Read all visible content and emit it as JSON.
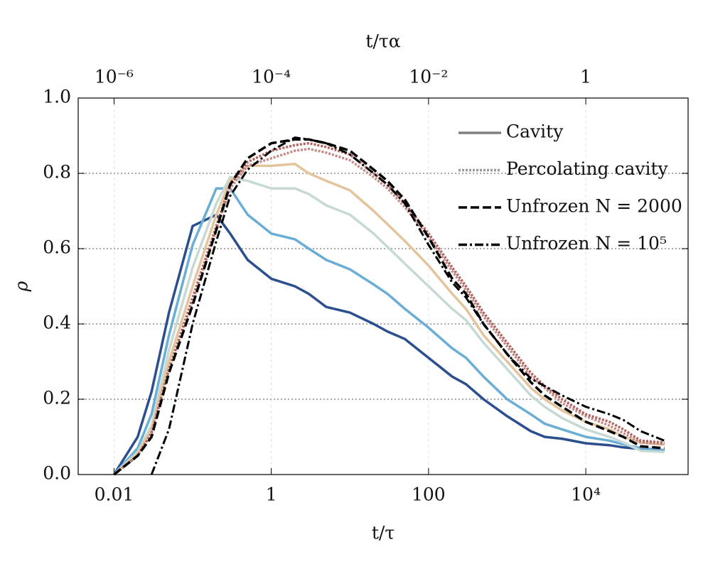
{
  "chart_data": {
    "type": "line",
    "xlabel": "t/τ",
    "x2label": "t/τα",
    "ylabel": "ρ",
    "xscale": "log",
    "xlim": [
      0.0035,
      200000
    ],
    "xticks": [
      0.01,
      1,
      100,
      {
        "value": 10000,
        "label": "10⁴"
      }
    ],
    "x2lim": [
      3.5e-07,
      20
    ],
    "x2ticks": [
      {
        "value": 1e-06,
        "label": "10⁻⁶"
      },
      {
        "value": 0.0001,
        "label": "10⁻⁴"
      },
      {
        "value": 0.01,
        "label": "10⁻²"
      },
      1
    ],
    "ylim": [
      0,
      1
    ],
    "yticks": [
      {
        "value": 0,
        "label": "0.0"
      },
      0.2,
      0.4,
      0.6,
      0.8,
      {
        "value": 1,
        "label": "1.0"
      }
    ],
    "grid": true,
    "legend_position": "upper right",
    "legend": [
      {
        "label": "Cavity",
        "style": "solid",
        "color": "#808080"
      },
      {
        "label": "Percolating cavity",
        "style": "dotted",
        "color": "#9a9a9a"
      },
      {
        "label": "Unfrozen N = 2000",
        "style": "dashed",
        "color": "#000000"
      },
      {
        "label": "Unfrozen N = 10⁵",
        "style": "dashdot",
        "color": "#000000"
      }
    ],
    "x": [
      0.01,
      0.02,
      0.03,
      0.05,
      0.1,
      0.2,
      0.3,
      0.5,
      1,
      2,
      3,
      5,
      10,
      20,
      30,
      50,
      100,
      200,
      300,
      500,
      1000,
      2000,
      3000,
      5000,
      10000,
      20000,
      30000,
      50000,
      100000
    ],
    "series": [
      {
        "style": "solid",
        "color": "#2b4f8e",
        "values": [
          0,
          0.1,
          0.22,
          0.43,
          0.66,
          0.69,
          0.64,
          0.57,
          0.52,
          0.5,
          0.48,
          0.445,
          0.43,
          0.4,
          0.38,
          0.36,
          0.31,
          0.26,
          0.24,
          0.2,
          0.155,
          0.115,
          0.1,
          0.095,
          0.083,
          0.078,
          0.072,
          0.068,
          0.063
        ]
      },
      {
        "style": "solid",
        "color": "#6aaed6",
        "values": [
          0,
          0.07,
          0.16,
          0.37,
          0.61,
          0.76,
          0.76,
          0.69,
          0.64,
          0.625,
          0.6,
          0.57,
          0.545,
          0.505,
          0.48,
          0.44,
          0.39,
          0.335,
          0.31,
          0.26,
          0.2,
          0.16,
          0.135,
          0.12,
          0.1,
          0.09,
          0.08,
          0.07,
          0.065
        ]
      },
      {
        "style": "solid",
        "color": "#c6d9d5",
        "values": [
          0,
          0.06,
          0.13,
          0.33,
          0.55,
          0.72,
          0.79,
          0.78,
          0.76,
          0.76,
          0.745,
          0.715,
          0.69,
          0.64,
          0.605,
          0.56,
          0.5,
          0.44,
          0.41,
          0.35,
          0.28,
          0.21,
          0.18,
          0.15,
          0.12,
          0.1,
          0.085,
          0.063,
          0.06
        ]
      },
      {
        "style": "solid",
        "color": "#e4c49c",
        "values": [
          0,
          0.055,
          0.12,
          0.3,
          0.5,
          0.69,
          0.78,
          0.82,
          0.82,
          0.825,
          0.8,
          0.78,
          0.755,
          0.7,
          0.665,
          0.62,
          0.555,
          0.48,
          0.44,
          0.37,
          0.3,
          0.23,
          0.2,
          0.17,
          0.14,
          0.12,
          0.1,
          0.085,
          0.08
        ]
      },
      {
        "style": "dotted",
        "color": "#c48b86",
        "values": [
          0,
          0.05,
          0.11,
          0.28,
          0.46,
          0.65,
          0.76,
          0.82,
          0.84,
          0.86,
          0.865,
          0.855,
          0.835,
          0.79,
          0.76,
          0.71,
          0.63,
          0.54,
          0.49,
          0.42,
          0.34,
          0.26,
          0.23,
          0.19,
          0.155,
          0.13,
          0.11,
          0.085,
          0.08
        ]
      },
      {
        "style": "dotted",
        "color": "#b26460",
        "values": [
          0,
          0.05,
          0.11,
          0.28,
          0.47,
          0.66,
          0.77,
          0.83,
          0.86,
          0.875,
          0.88,
          0.87,
          0.85,
          0.8,
          0.77,
          0.72,
          0.64,
          0.55,
          0.5,
          0.43,
          0.35,
          0.27,
          0.235,
          0.2,
          0.16,
          0.14,
          0.12,
          0.09,
          0.085
        ]
      },
      {
        "style": "dashed",
        "color": "#000000",
        "values": [
          0,
          0.05,
          0.1,
          0.27,
          0.45,
          0.65,
          0.77,
          0.84,
          0.88,
          0.89,
          0.89,
          0.88,
          0.86,
          0.81,
          0.78,
          0.73,
          0.63,
          0.52,
          0.48,
          0.4,
          0.32,
          0.245,
          0.21,
          0.18,
          0.14,
          0.115,
          0.1,
          0.075,
          0.07
        ]
      },
      {
        "style": "dashdot",
        "color": "#000000",
        "values": [
          null,
          null,
          0,
          0.12,
          0.4,
          0.62,
          0.74,
          0.81,
          0.86,
          0.895,
          0.89,
          0.88,
          0.85,
          0.8,
          0.77,
          0.72,
          0.61,
          0.51,
          0.47,
          0.4,
          0.32,
          0.255,
          0.235,
          0.21,
          0.18,
          0.16,
          0.145,
          0.115,
          0.09
        ]
      }
    ]
  }
}
